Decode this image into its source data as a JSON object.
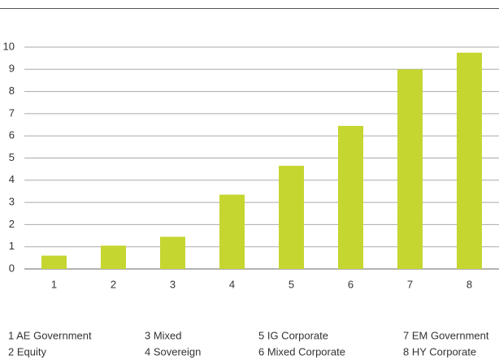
{
  "chart_data": {
    "type": "bar",
    "categories": [
      "1",
      "2",
      "3",
      "4",
      "5",
      "6",
      "7",
      "8"
    ],
    "values": [
      0.6,
      1.05,
      1.45,
      3.35,
      4.65,
      6.45,
      9.0,
      9.75
    ],
    "color": "#c5d630",
    "ylim": [
      0,
      10
    ],
    "yticks": [
      0,
      1,
      2,
      3,
      4,
      5,
      6,
      7,
      8,
      9,
      10
    ],
    "grid": true,
    "notes": [
      "1 AE Government",
      "2 Equity",
      "3 Mixed",
      "4 Sovereign",
      "5 IG Corporate",
      "6 Mixed Corporate",
      "7 EM Government",
      "8 HY Corporate"
    ]
  }
}
